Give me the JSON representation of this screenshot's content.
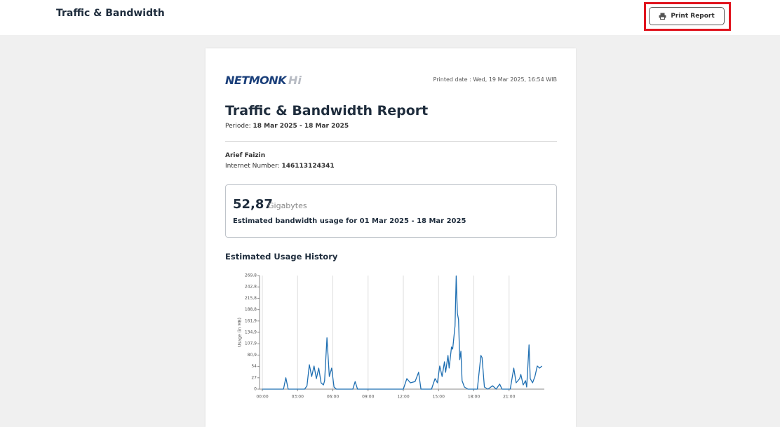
{
  "header": {
    "title": "Traffic & Bandwidth",
    "print_button": "Print Report"
  },
  "report": {
    "logo": "NETMONK",
    "logo_suffix": "Hi",
    "printed_date": "Printed date : Wed, 19 Mar 2025, 16:54 WIB",
    "title": "Traffic & Bandwidth Report",
    "period_label": "Periode:",
    "period": "18 Mar 2025 - 18 Mar 2025",
    "customer_name": "Arief Faizin",
    "internet_number_label": "Internet Number:",
    "internet_number": "146113124341",
    "usage_value": "52,87",
    "usage_unit": "Gigabytes",
    "usage_description": "Estimated bandwidth usage for 01 Mar 2025 - 18 Mar 2025",
    "history_title": "Estimated Usage History"
  },
  "chart_data": {
    "type": "line",
    "y_label": "Usage (in MB)",
    "color": "#1f6fb2",
    "grid": true,
    "x": [
      0,
      1.8,
      2.0,
      2.2,
      3.6,
      3.8,
      4.0,
      4.2,
      4.4,
      4.6,
      4.8,
      5.0,
      5.2,
      5.3,
      5.5,
      5.7,
      5.9,
      6.1,
      6.3,
      7.7,
      7.9,
      8.1,
      12.0,
      12.3,
      12.6,
      13.0,
      13.3,
      13.5,
      14.4,
      14.7,
      14.9,
      15.1,
      15.3,
      15.5,
      15.6,
      15.8,
      15.9,
      16.1,
      16.2,
      16.4,
      16.5,
      16.6,
      16.7,
      16.8,
      16.9,
      17.0,
      17.2,
      17.5,
      18.3,
      18.6,
      18.7,
      18.9,
      19.2,
      19.6,
      19.9,
      20.2,
      20.4,
      21.1,
      21.4,
      21.6,
      21.9,
      22.0,
      22.2,
      22.4,
      22.5,
      22.7,
      22.8,
      23.0,
      23.2,
      23.4,
      23.6,
      23.8
    ],
    "values": [
      0,
      0,
      27,
      0,
      0,
      8,
      58,
      30,
      55,
      25,
      50,
      15,
      10,
      20,
      122,
      30,
      50,
      5,
      0,
      0,
      18,
      0,
      0,
      25,
      15,
      18,
      40,
      0,
      0,
      25,
      15,
      55,
      30,
      65,
      40,
      80,
      50,
      100,
      95,
      150,
      269,
      180,
      165,
      70,
      90,
      20,
      5,
      0,
      0,
      80,
      75,
      5,
      0,
      8,
      0,
      12,
      0,
      0,
      50,
      15,
      25,
      35,
      10,
      20,
      5,
      105,
      25,
      15,
      30,
      55,
      50,
      55
    ],
    "xlim": [
      0,
      24
    ],
    "xticks": [
      {
        "value": 0,
        "label": "00:00"
      },
      {
        "value": 3,
        "label": "03:00"
      },
      {
        "value": 6,
        "label": "06:00"
      },
      {
        "value": 9,
        "label": "09:00"
      },
      {
        "value": 12,
        "label": "12:00"
      },
      {
        "value": 15,
        "label": "15:00"
      },
      {
        "value": 18,
        "label": "18:00"
      },
      {
        "value": 21,
        "label": "21:00"
      }
    ],
    "ylim": [
      0,
      269.8
    ],
    "yticks": [
      0,
      27,
      54,
      {
        "value": 80.9,
        "label": "80,9"
      },
      {
        "value": 107.9,
        "label": "107,9"
      },
      {
        "value": 134.9,
        "label": "134,9"
      },
      {
        "value": 161.9,
        "label": "161,9"
      },
      {
        "value": 188.8,
        "label": "188,8"
      },
      {
        "value": 215.8,
        "label": "215,8"
      },
      {
        "value": 242.8,
        "label": "242,8"
      },
      {
        "value": 269.8,
        "label": "269,8"
      }
    ]
  }
}
